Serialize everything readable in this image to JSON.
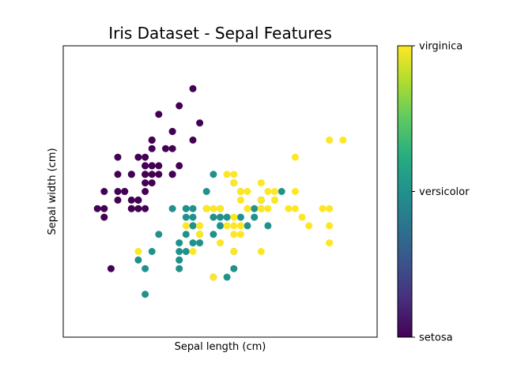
{
  "chart_data": {
    "type": "scatter",
    "title": "Iris Dataset - Sepal Features",
    "xlabel": "Sepal length (cm)",
    "ylabel": "Sepal width (cm)",
    "xlim": [
      3.8,
      8.4
    ],
    "ylim": [
      1.5,
      4.9
    ],
    "grid": false,
    "colorbar": {
      "colormap": "viridis",
      "ticks": [
        {
          "value": 0,
          "label": "setosa"
        },
        {
          "value": 1,
          "label": "versicolor"
        },
        {
          "value": 2,
          "label": "virginica"
        }
      ]
    },
    "series": [
      {
        "name": "setosa",
        "color_value": 0,
        "points": [
          [
            5.1,
            3.5
          ],
          [
            4.9,
            3.0
          ],
          [
            4.7,
            3.2
          ],
          [
            4.6,
            3.1
          ],
          [
            5.0,
            3.6
          ],
          [
            5.4,
            3.9
          ],
          [
            4.6,
            3.4
          ],
          [
            5.0,
            3.4
          ],
          [
            4.4,
            2.9
          ],
          [
            4.9,
            3.1
          ],
          [
            5.4,
            3.7
          ],
          [
            4.8,
            3.4
          ],
          [
            4.8,
            3.0
          ],
          [
            4.3,
            3.0
          ],
          [
            5.8,
            4.0
          ],
          [
            5.7,
            4.4
          ],
          [
            5.4,
            3.9
          ],
          [
            5.1,
            3.5
          ],
          [
            5.7,
            3.8
          ],
          [
            5.1,
            3.8
          ],
          [
            5.4,
            3.4
          ],
          [
            5.1,
            3.7
          ],
          [
            4.6,
            3.6
          ],
          [
            5.1,
            3.3
          ],
          [
            4.8,
            3.4
          ],
          [
            5.0,
            3.0
          ],
          [
            5.0,
            3.4
          ],
          [
            5.2,
            3.5
          ],
          [
            5.2,
            3.4
          ],
          [
            4.7,
            3.2
          ],
          [
            4.8,
            3.1
          ],
          [
            5.4,
            3.4
          ],
          [
            5.2,
            4.1
          ],
          [
            5.5,
            4.2
          ],
          [
            4.9,
            3.1
          ],
          [
            5.0,
            3.2
          ],
          [
            5.5,
            3.5
          ],
          [
            4.9,
            3.6
          ],
          [
            4.4,
            3.0
          ],
          [
            5.1,
            3.4
          ],
          [
            5.0,
            3.5
          ],
          [
            4.5,
            2.3
          ],
          [
            4.4,
            3.2
          ],
          [
            5.0,
            3.5
          ],
          [
            5.1,
            3.8
          ],
          [
            4.8,
            3.0
          ],
          [
            5.1,
            3.8
          ],
          [
            4.6,
            3.2
          ],
          [
            5.3,
            3.7
          ],
          [
            5.0,
            3.3
          ]
        ]
      },
      {
        "name": "versicolor",
        "color_value": 1,
        "points": [
          [
            7.0,
            3.2
          ],
          [
            6.4,
            3.2
          ],
          [
            6.9,
            3.1
          ],
          [
            5.5,
            2.3
          ],
          [
            6.5,
            2.8
          ],
          [
            5.7,
            2.8
          ],
          [
            6.3,
            3.3
          ],
          [
            4.9,
            2.4
          ],
          [
            6.6,
            2.9
          ],
          [
            5.2,
            2.7
          ],
          [
            5.0,
            2.0
          ],
          [
            5.9,
            3.0
          ],
          [
            6.0,
            2.2
          ],
          [
            6.1,
            2.9
          ],
          [
            5.6,
            2.9
          ],
          [
            6.7,
            3.1
          ],
          [
            5.6,
            3.0
          ],
          [
            5.8,
            2.7
          ],
          [
            6.2,
            2.2
          ],
          [
            5.6,
            2.5
          ],
          [
            5.9,
            3.2
          ],
          [
            6.1,
            2.8
          ],
          [
            6.3,
            2.5
          ],
          [
            6.1,
            2.8
          ],
          [
            6.4,
            2.9
          ],
          [
            6.6,
            3.0
          ],
          [
            6.8,
            2.8
          ],
          [
            6.7,
            3.0
          ],
          [
            6.0,
            2.9
          ],
          [
            5.7,
            2.6
          ],
          [
            5.5,
            2.4
          ],
          [
            5.5,
            2.4
          ],
          [
            5.8,
            2.7
          ],
          [
            6.0,
            2.7
          ],
          [
            5.4,
            3.0
          ],
          [
            6.0,
            3.4
          ],
          [
            6.7,
            3.1
          ],
          [
            6.3,
            2.3
          ],
          [
            5.6,
            3.0
          ],
          [
            5.5,
            2.5
          ],
          [
            5.5,
            2.6
          ],
          [
            6.1,
            3.0
          ],
          [
            5.8,
            2.6
          ],
          [
            5.0,
            2.3
          ],
          [
            5.6,
            2.7
          ],
          [
            5.7,
            3.0
          ],
          [
            5.7,
            2.9
          ],
          [
            6.2,
            2.9
          ],
          [
            5.1,
            2.5
          ],
          [
            5.7,
            2.8
          ]
        ]
      },
      {
        "name": "virginica",
        "color_value": 2,
        "points": [
          [
            6.3,
            3.3
          ],
          [
            5.8,
            2.7
          ],
          [
            7.1,
            3.0
          ],
          [
            6.3,
            2.9
          ],
          [
            6.5,
            3.0
          ],
          [
            7.6,
            3.0
          ],
          [
            4.9,
            2.5
          ],
          [
            7.3,
            2.9
          ],
          [
            6.7,
            2.5
          ],
          [
            7.2,
            3.6
          ],
          [
            6.5,
            3.2
          ],
          [
            6.4,
            2.7
          ],
          [
            6.8,
            3.0
          ],
          [
            5.7,
            2.5
          ],
          [
            5.8,
            2.8
          ],
          [
            6.4,
            3.2
          ],
          [
            6.5,
            3.0
          ],
          [
            7.7,
            3.8
          ],
          [
            7.7,
            2.6
          ],
          [
            6.0,
            2.2
          ],
          [
            6.9,
            3.2
          ],
          [
            5.6,
            2.8
          ],
          [
            7.7,
            2.8
          ],
          [
            6.3,
            2.7
          ],
          [
            6.7,
            3.3
          ],
          [
            7.2,
            3.2
          ],
          [
            6.2,
            2.8
          ],
          [
            6.1,
            3.0
          ],
          [
            6.4,
            2.8
          ],
          [
            7.2,
            3.0
          ],
          [
            7.4,
            2.8
          ],
          [
            7.9,
            3.8
          ],
          [
            6.4,
            2.8
          ],
          [
            6.3,
            2.8
          ],
          [
            6.1,
            2.6
          ],
          [
            7.7,
            3.0
          ],
          [
            6.3,
            3.4
          ],
          [
            6.4,
            3.1
          ],
          [
            6.0,
            3.0
          ],
          [
            6.9,
            3.1
          ],
          [
            6.7,
            3.1
          ],
          [
            6.9,
            3.1
          ],
          [
            5.8,
            2.7
          ],
          [
            6.8,
            3.2
          ],
          [
            6.7,
            3.3
          ],
          [
            6.7,
            3.0
          ],
          [
            6.3,
            2.5
          ],
          [
            6.5,
            3.0
          ],
          [
            6.2,
            3.4
          ],
          [
            5.9,
            3.0
          ]
        ]
      }
    ]
  },
  "colors": {
    "setosa": "#440154",
    "versicolor": "#21918c",
    "virginica": "#fde725",
    "axes": "#000000",
    "background": "#ffffff"
  }
}
